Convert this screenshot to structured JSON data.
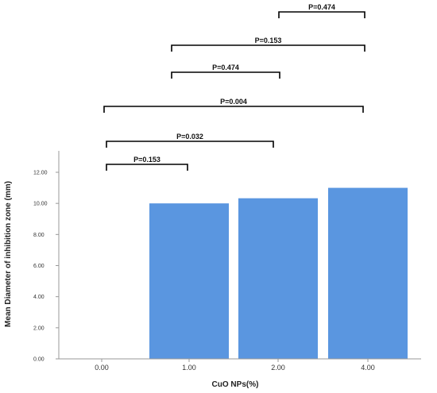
{
  "chart_data": {
    "type": "bar",
    "title": "",
    "xlabel": "CuO NPs(%)",
    "ylabel": "Mean Diameter of inhibition zone (mm)",
    "categories": [
      "0.00",
      "1.00",
      "2.00",
      "4.00"
    ],
    "values": [
      0.0,
      10.0,
      10.33,
      11.0
    ],
    "ylim": [
      0,
      12
    ],
    "yticks": [
      "0.00",
      "2.00",
      "4.00",
      "6.00",
      "8.00",
      "10.00",
      "12.00"
    ],
    "bar_color": "#5a96e0",
    "grid": false,
    "legend": "none",
    "comparisons": [
      {
        "from": "0.00",
        "to": "1.00",
        "label": "P=0.153"
      },
      {
        "from": "0.00",
        "to": "2.00",
        "label": "P=0.032"
      },
      {
        "from": "0.00",
        "to": "4.00",
        "label": "P=0.004"
      },
      {
        "from": "1.00",
        "to": "2.00",
        "label": "P=0.474"
      },
      {
        "from": "1.00",
        "to": "4.00",
        "label": "P=0.153"
      },
      {
        "from": "2.00",
        "to": "4.00",
        "label": "P=0.474"
      }
    ]
  }
}
